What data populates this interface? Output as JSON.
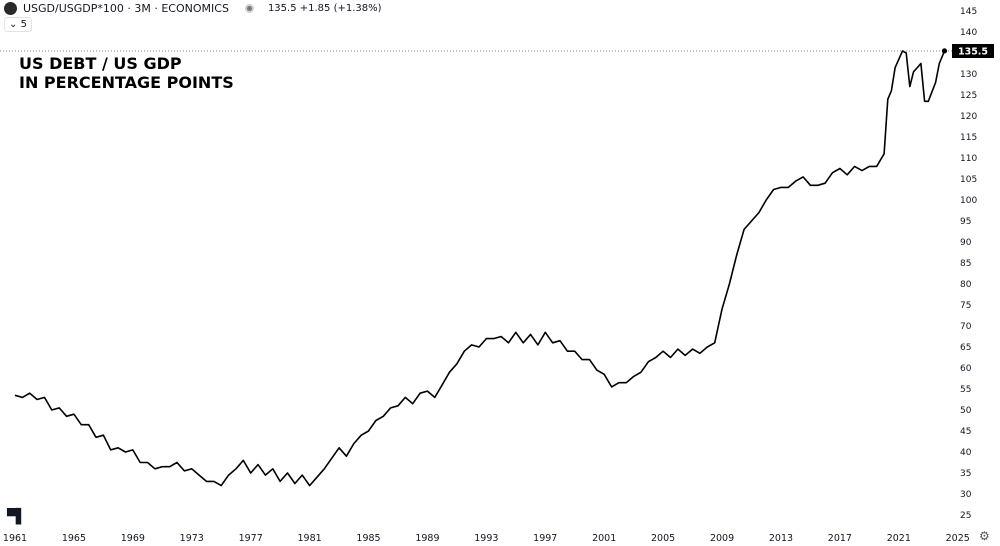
{
  "header": {
    "symbol": "USGD/USGDP*100 · 3M · ECONOMICS",
    "values": "135.5 +1.85 (+1.38%)",
    "collapse_label": "5"
  },
  "annotation": {
    "line1": "US DEBT / US GDP",
    "line2": "IN PERCENTAGE POINTS"
  },
  "logo": "TV",
  "chart_data": {
    "type": "line",
    "title": "US DEBT / US GDP IN PERCENTAGE POINTS",
    "ylim": [
      25,
      145
    ],
    "yticks": [
      25,
      30,
      35,
      40,
      45,
      50,
      55,
      60,
      65,
      70,
      75,
      80,
      85,
      90,
      95,
      100,
      105,
      110,
      115,
      120,
      125,
      130,
      135,
      140,
      145
    ],
    "xticks": [
      "1961",
      "1965",
      "1969",
      "1973",
      "1977",
      "1981",
      "1985",
      "1989",
      "1993",
      "1997",
      "2001",
      "2005",
      "2009",
      "2013",
      "2017",
      "2021",
      "2025"
    ],
    "last_value_label": "135.5",
    "line_color": "#000000",
    "grid": false,
    "points": [
      [
        1961,
        53.5
      ],
      [
        1961.5,
        53
      ],
      [
        1962,
        54
      ],
      [
        1962.5,
        52.5
      ],
      [
        1963,
        53
      ],
      [
        1963.5,
        50
      ],
      [
        1964,
        50.5
      ],
      [
        1964.5,
        48.5
      ],
      [
        1965,
        49
      ],
      [
        1965.5,
        46.5
      ],
      [
        1966,
        46.5
      ],
      [
        1966.5,
        43.5
      ],
      [
        1967,
        44
      ],
      [
        1967.5,
        40.5
      ],
      [
        1968,
        41
      ],
      [
        1968.5,
        40
      ],
      [
        1969,
        40.5
      ],
      [
        1969.5,
        37.5
      ],
      [
        1970,
        37.5
      ],
      [
        1970.5,
        36
      ],
      [
        1971,
        36.5
      ],
      [
        1971.5,
        36.5
      ],
      [
        1972,
        37.5
      ],
      [
        1972.5,
        35.5
      ],
      [
        1973,
        36
      ],
      [
        1973.5,
        34.5
      ],
      [
        1974,
        33
      ],
      [
        1974.5,
        33
      ],
      [
        1975,
        32
      ],
      [
        1975.5,
        34.5
      ],
      [
        1976,
        36
      ],
      [
        1976.5,
        38
      ],
      [
        1977,
        35
      ],
      [
        1977.5,
        37
      ],
      [
        1978,
        34.5
      ],
      [
        1978.5,
        36
      ],
      [
        1979,
        33
      ],
      [
        1979.5,
        35
      ],
      [
        1980,
        32.5
      ],
      [
        1980.5,
        34.5
      ],
      [
        1981,
        32
      ],
      [
        1981.5,
        34
      ],
      [
        1982,
        36
      ],
      [
        1982.5,
        38.5
      ],
      [
        1983,
        41
      ],
      [
        1983.5,
        39
      ],
      [
        1984,
        42
      ],
      [
        1984.5,
        44
      ],
      [
        1985,
        45
      ],
      [
        1985.5,
        47.5
      ],
      [
        1986,
        48.5
      ],
      [
        1986.5,
        50.5
      ],
      [
        1987,
        51
      ],
      [
        1987.5,
        53
      ],
      [
        1988,
        51.5
      ],
      [
        1988.5,
        54
      ],
      [
        1989,
        54.5
      ],
      [
        1989.5,
        53
      ],
      [
        1990,
        56
      ],
      [
        1990.5,
        59
      ],
      [
        1991,
        61
      ],
      [
        1991.5,
        64
      ],
      [
        1992,
        65.5
      ],
      [
        1992.5,
        65
      ],
      [
        1993,
        67
      ],
      [
        1993.5,
        67
      ],
      [
        1994,
        67.5
      ],
      [
        1994.5,
        66
      ],
      [
        1995,
        68.5
      ],
      [
        1995.5,
        66
      ],
      [
        1996,
        68
      ],
      [
        1996.5,
        65.5
      ],
      [
        1997,
        68.5
      ],
      [
        1997.5,
        66
      ],
      [
        1998,
        66.5
      ],
      [
        1998.5,
        64
      ],
      [
        1999,
        64
      ],
      [
        1999.5,
        62
      ],
      [
        2000,
        62
      ],
      [
        2000.5,
        59.5
      ],
      [
        2001,
        58.5
      ],
      [
        2001.5,
        55.5
      ],
      [
        2002,
        56.5
      ],
      [
        2002.5,
        56.5
      ],
      [
        2003,
        58
      ],
      [
        2003.5,
        59
      ],
      [
        2004,
        61.5
      ],
      [
        2004.5,
        62.5
      ],
      [
        2005,
        64
      ],
      [
        2005.5,
        62.5
      ],
      [
        2006,
        64.5
      ],
      [
        2006.5,
        63
      ],
      [
        2007,
        64.5
      ],
      [
        2007.5,
        63.5
      ],
      [
        2008,
        65
      ],
      [
        2008.5,
        66
      ],
      [
        2009,
        74
      ],
      [
        2009.5,
        80
      ],
      [
        2010,
        87
      ],
      [
        2010.5,
        93
      ],
      [
        2011,
        95
      ],
      [
        2011.5,
        97
      ],
      [
        2012,
        100
      ],
      [
        2012.5,
        102.5
      ],
      [
        2013,
        103
      ],
      [
        2013.5,
        103
      ],
      [
        2014,
        104.5
      ],
      [
        2014.5,
        105.5
      ],
      [
        2015,
        103.5
      ],
      [
        2015.5,
        103.5
      ],
      [
        2016,
        104
      ],
      [
        2016.5,
        106.5
      ],
      [
        2017,
        107.5
      ],
      [
        2017.5,
        106
      ],
      [
        2018,
        108
      ],
      [
        2018.5,
        107
      ],
      [
        2019,
        108
      ],
      [
        2019.5,
        108
      ],
      [
        2020,
        111
      ],
      [
        2020.25,
        124
      ],
      [
        2020.5,
        126
      ],
      [
        2020.75,
        131.5
      ],
      [
        2021.25,
        135.5
      ],
      [
        2021.5,
        135
      ],
      [
        2021.75,
        127
      ],
      [
        2022,
        130.5
      ],
      [
        2022.5,
        132.5
      ],
      [
        2022.75,
        123.5
      ],
      [
        2023,
        123.5
      ],
      [
        2023.5,
        128
      ],
      [
        2023.75,
        132.5
      ],
      [
        2024.1,
        135.5
      ]
    ]
  }
}
